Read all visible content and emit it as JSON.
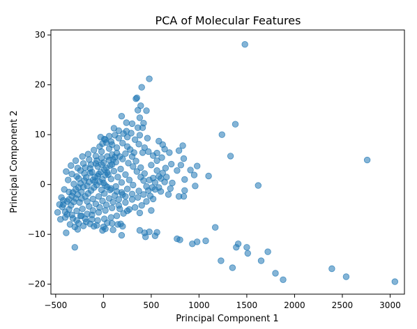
{
  "chart_data": {
    "type": "scatter",
    "title": "PCA of Molecular Features",
    "xlabel": "Principal Component 1",
    "ylabel": "Principal Component 2",
    "xlim": [
      -550,
      3150
    ],
    "ylim": [
      -22,
      31
    ],
    "xticks": [
      -500,
      0,
      500,
      1000,
      1500,
      2000,
      2500,
      3000
    ],
    "xtick_labels": [
      "−500",
      "0",
      "500",
      "1000",
      "1500",
      "2000",
      "2500",
      "3000"
    ],
    "yticks": [
      -20,
      -10,
      0,
      10,
      20,
      30
    ],
    "ytick_labels": [
      "−20",
      "−10",
      "0",
      "10",
      "20",
      "30"
    ],
    "grid": false,
    "point_color": "#1f77b4",
    "point_alpha": 0.55,
    "series": [
      {
        "points": [
          [
            1480,
            28.1
          ],
          [
            480,
            21.2
          ],
          [
            400,
            19.5
          ],
          [
            350,
            17.4
          ],
          [
            340,
            17.2
          ],
          [
            390,
            15.8
          ],
          [
            360,
            14.9
          ],
          [
            450,
            14.8
          ],
          [
            380,
            13.4
          ],
          [
            190,
            13.7
          ],
          [
            420,
            12.3
          ],
          [
            240,
            12.4
          ],
          [
            300,
            12.2
          ],
          [
            410,
            11.4
          ],
          [
            360,
            11.4
          ],
          [
            110,
            11.3
          ],
          [
            160,
            10.8
          ],
          [
            240,
            10.7
          ],
          [
            1380,
            12.1
          ],
          [
            1240,
            10.0
          ],
          [
            380,
            9.9
          ],
          [
            -30,
            9.5
          ],
          [
            10,
            9.1
          ],
          [
            80,
            8.6
          ],
          [
            460,
            9.3
          ],
          [
            580,
            8.7
          ],
          [
            620,
            8.0
          ],
          [
            830,
            7.8
          ],
          [
            640,
            7.1
          ],
          [
            410,
            6.4
          ],
          [
            560,
            6.3
          ],
          [
            690,
            6.4
          ],
          [
            790,
            6.8
          ],
          [
            1330,
            5.7
          ],
          [
            840,
            5.2
          ],
          [
            980,
            3.7
          ],
          [
            710,
            4.1
          ],
          [
            810,
            3.9
          ],
          [
            650,
            3.3
          ],
          [
            910,
            2.9
          ],
          [
            560,
            2.8
          ],
          [
            770,
            2.8
          ],
          [
            1100,
            1.7
          ],
          [
            520,
            1.3
          ],
          [
            600,
            1.2
          ],
          [
            660,
            1.5
          ],
          [
            950,
            1.9
          ],
          [
            720,
            0.3
          ],
          [
            850,
            1.0
          ],
          [
            960,
            -0.3
          ],
          [
            580,
            -0.6
          ],
          [
            700,
            -0.8
          ],
          [
            850,
            -1.2
          ],
          [
            790,
            -2.4
          ],
          [
            840,
            -2.4
          ],
          [
            680,
            -2.0
          ],
          [
            490,
            -2.3
          ],
          [
            500,
            -5.2
          ],
          [
            380,
            -5.7
          ],
          [
            170,
            -4.9
          ],
          [
            250,
            -5.3
          ],
          [
            -400,
            -5.5
          ],
          [
            -450,
            -7.0
          ],
          [
            -390,
            -9.7
          ],
          [
            -300,
            -8.5
          ],
          [
            -270,
            -9.0
          ],
          [
            -230,
            -6.3
          ],
          [
            -180,
            -7.5
          ],
          [
            -120,
            -7.0
          ],
          [
            -100,
            -8.4
          ],
          [
            -70,
            -8.2
          ],
          [
            0,
            -8.5
          ],
          [
            20,
            -8.9
          ],
          [
            40,
            -7.7
          ],
          [
            90,
            -7.8
          ],
          [
            150,
            -8.0
          ],
          [
            180,
            -7.9
          ],
          [
            200,
            -8.4
          ],
          [
            100,
            -9.1
          ],
          [
            190,
            -10.2
          ],
          [
            -300,
            -12.6
          ],
          [
            -10,
            -9.2
          ],
          [
            380,
            -9.2
          ],
          [
            430,
            -9.7
          ],
          [
            440,
            -10.5
          ],
          [
            540,
            -10.3
          ],
          [
            560,
            -9.6
          ],
          [
            480,
            -9.5
          ],
          [
            770,
            -10.9
          ],
          [
            800,
            -11.1
          ],
          [
            930,
            -11.9
          ],
          [
            980,
            -11.5
          ],
          [
            1070,
            -11.3
          ],
          [
            1170,
            -8.6
          ],
          [
            1230,
            -15.3
          ],
          [
            1350,
            -16.7
          ],
          [
            1390,
            -12.6
          ],
          [
            1410,
            -11.9
          ],
          [
            1500,
            -12.6
          ],
          [
            1510,
            -13.8
          ],
          [
            1650,
            -15.3
          ],
          [
            1720,
            -13.5
          ],
          [
            1800,
            -17.8
          ],
          [
            1880,
            -19.1
          ],
          [
            2390,
            -16.9
          ],
          [
            2540,
            -18.5
          ],
          [
            3050,
            -19.5
          ],
          [
            2760,
            4.9
          ],
          [
            1620,
            -0.2
          ],
          [
            -480,
            -5.6
          ],
          [
            -430,
            -4.5
          ],
          [
            -420,
            -3.2
          ],
          [
            -360,
            -1.5
          ],
          [
            -310,
            0.1
          ],
          [
            -280,
            1.6
          ],
          [
            -240,
            2.8
          ],
          [
            -190,
            3.4
          ],
          [
            -130,
            4.0
          ],
          [
            -70,
            4.8
          ],
          [
            -20,
            5.3
          ],
          [
            40,
            5.6
          ],
          [
            90,
            6.0
          ],
          [
            140,
            6.3
          ],
          [
            200,
            5.1
          ],
          [
            260,
            4.3
          ],
          [
            310,
            3.6
          ],
          [
            350,
            2.6
          ],
          [
            390,
            1.5
          ],
          [
            420,
            0.8
          ],
          [
            450,
            -0.4
          ],
          [
            370,
            -1.3
          ],
          [
            300,
            -1.9
          ],
          [
            230,
            -2.4
          ],
          [
            160,
            -3.0
          ],
          [
            100,
            -3.5
          ],
          [
            30,
            -4.1
          ],
          [
            -40,
            -4.6
          ],
          [
            -110,
            -5.2
          ],
          [
            -170,
            -5.9
          ],
          [
            -240,
            -6.3
          ],
          [
            -320,
            -6.8
          ],
          [
            -380,
            -6.0
          ],
          [
            -340,
            -4.2
          ],
          [
            -290,
            -2.8
          ],
          [
            -230,
            -1.5
          ],
          [
            -170,
            -0.3
          ],
          [
            -110,
            0.9
          ],
          [
            -50,
            2.1
          ],
          [
            10,
            3.0
          ],
          [
            70,
            3.8
          ],
          [
            130,
            4.5
          ],
          [
            180,
            3.1
          ],
          [
            230,
            2.0
          ],
          [
            270,
            0.9
          ],
          [
            310,
            -0.1
          ],
          [
            250,
            -0.9
          ],
          [
            190,
            -1.6
          ],
          [
            120,
            -2.2
          ],
          [
            60,
            -2.8
          ],
          [
            -10,
            -3.3
          ],
          [
            -80,
            -3.9
          ],
          [
            -150,
            -4.4
          ],
          [
            -220,
            -4.9
          ],
          [
            -280,
            -5.3
          ],
          [
            -250,
            -3.6
          ],
          [
            -190,
            -2.4
          ],
          [
            -130,
            -1.2
          ],
          [
            -70,
            -0.1
          ],
          [
            -10,
            1.0
          ],
          [
            50,
            2.0
          ],
          [
            110,
            2.7
          ],
          [
            150,
            1.5
          ],
          [
            190,
            0.4
          ],
          [
            130,
            -0.4
          ],
          [
            70,
            -1.1
          ],
          [
            10,
            -1.8
          ],
          [
            -50,
            -2.4
          ],
          [
            -110,
            -2.9
          ],
          [
            -170,
            -3.4
          ],
          [
            -60,
            1.7
          ],
          [
            0,
            0.3
          ],
          [
            40,
            -0.5
          ],
          [
            -20,
            -1.1
          ],
          [
            -90,
            0.6
          ],
          [
            20,
            1.9
          ],
          [
            80,
            1.1
          ],
          [
            -140,
            2.3
          ],
          [
            -200,
            0.8
          ],
          [
            -260,
            -0.6
          ],
          [
            100,
            5.0
          ],
          [
            170,
            5.6
          ],
          [
            230,
            6.2
          ],
          [
            280,
            7.0
          ],
          [
            320,
            6.4
          ],
          [
            60,
            7.2
          ],
          [
            -20,
            6.6
          ],
          [
            -80,
            5.7
          ],
          [
            -150,
            5.0
          ],
          [
            -210,
            4.2
          ],
          [
            -270,
            3.3
          ],
          [
            -330,
            2.1
          ],
          [
            -370,
            0.9
          ],
          [
            -410,
            -1.0
          ],
          [
            -440,
            -2.6
          ],
          [
            -460,
            -4.0
          ],
          [
            -350,
            -8.0
          ],
          [
            -260,
            -7.8
          ],
          [
            -190,
            -6.9
          ],
          [
            -120,
            -6.1
          ],
          [
            -50,
            -5.6
          ],
          [
            20,
            -5.2
          ],
          [
            90,
            -4.7
          ],
          [
            160,
            -4.2
          ],
          [
            230,
            -3.6
          ],
          [
            300,
            -3.0
          ],
          [
            360,
            -2.6
          ],
          [
            420,
            -2.0
          ],
          [
            470,
            -1.2
          ],
          [
            510,
            -0.6
          ],
          [
            540,
            0.4
          ],
          [
            480,
            0.9
          ],
          [
            430,
            2.2
          ],
          [
            390,
            3.4
          ],
          [
            340,
            4.7
          ],
          [
            300,
            5.6
          ],
          [
            250,
            7.6
          ],
          [
            200,
            8.3
          ],
          [
            140,
            7.4
          ],
          [
            90,
            8.0
          ],
          [
            30,
            8.4
          ],
          [
            -40,
            7.6
          ],
          [
            -100,
            6.9
          ],
          [
            -160,
            6.1
          ],
          [
            -220,
            5.6
          ],
          [
            -290,
            4.8
          ],
          [
            -340,
            3.8
          ],
          [
            -390,
            2.6
          ],
          [
            -290,
            -1.0
          ],
          [
            -240,
            0.2
          ],
          [
            -180,
            1.4
          ],
          [
            -120,
            2.5
          ],
          [
            -60,
            3.6
          ],
          [
            0,
            4.4
          ],
          [
            60,
            4.9
          ],
          [
            120,
            5.5
          ],
          [
            -230,
            -2.8
          ],
          [
            -160,
            -1.8
          ],
          [
            -100,
            -0.6
          ],
          [
            -40,
            0.5
          ],
          [
            20,
            -0.2
          ],
          [
            80,
            -0.8
          ],
          [
            140,
            -1.4
          ],
          [
            200,
            -2.0
          ],
          [
            -310,
            -3.5
          ],
          [
            -270,
            -2.0
          ],
          [
            -210,
            -0.5
          ],
          [
            -150,
            0.5
          ],
          [
            -90,
            1.5
          ],
          [
            -30,
            2.5
          ],
          [
            30,
            3.3
          ],
          [
            90,
            4.0
          ],
          [
            -360,
            -3.0
          ],
          [
            -320,
            -1.6
          ],
          [
            -260,
            1.2
          ],
          [
            -200,
            2.2
          ],
          [
            -140,
            3.2
          ],
          [
            -80,
            4.2
          ],
          [
            -20,
            4.0
          ],
          [
            40,
            2.4
          ],
          [
            560,
            4.8
          ],
          [
            610,
            5.4
          ],
          [
            520,
            5.8
          ],
          [
            470,
            6.6
          ],
          [
            430,
            7.4
          ],
          [
            370,
            8.1
          ],
          [
            330,
            9.0
          ],
          [
            290,
            10.3
          ],
          [
            250,
            9.5
          ],
          [
            210,
            10.2
          ],
          [
            160,
            9.3
          ],
          [
            120,
            9.9
          ],
          [
            60,
            9.7
          ],
          [
            20,
            9.0
          ],
          [
            -10,
            8.2
          ],
          [
            500,
            3.9
          ],
          [
            620,
            2.3
          ],
          [
            580,
            1.6
          ],
          [
            640,
            0.5
          ],
          [
            600,
            -1.4
          ],
          [
            540,
            -1.0
          ],
          [
            520,
            -2.9
          ],
          [
            450,
            -3.4
          ],
          [
            400,
            -4.2
          ],
          [
            330,
            -4.6
          ],
          [
            270,
            -5.0
          ],
          [
            210,
            -5.8
          ],
          [
            140,
            -6.3
          ],
          [
            80,
            -6.6
          ],
          [
            10,
            -6.9
          ],
          [
            -60,
            -7.2
          ],
          [
            -140,
            -7.9
          ],
          [
            -210,
            -8.3
          ],
          [
            -280,
            -7.2
          ],
          [
            -330,
            -6.1
          ],
          [
            -400,
            -6.6
          ],
          [
            -360,
            -5.0
          ],
          [
            -420,
            -4.0
          ],
          [
            -380,
            -3.4
          ],
          [
            -330,
            -2.3
          ]
        ]
      }
    ]
  }
}
